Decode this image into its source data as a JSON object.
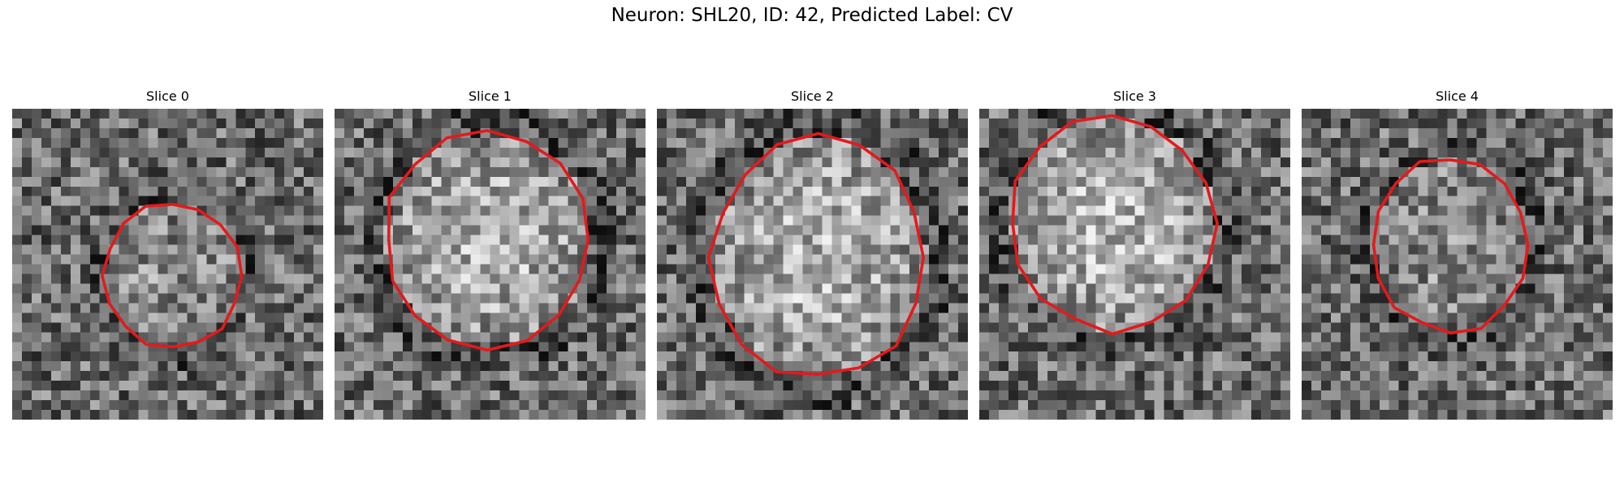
{
  "title": "Neuron: SHL20, ID: 42, Predicted Label: CV",
  "contour_color": "#e31a1c",
  "slices": [
    {
      "label": "Slice 0",
      "seed": 11,
      "center": [
        16.5,
        17.2
      ],
      "radii": [
        7.0,
        7.5
      ],
      "bright": 0.55
    },
    {
      "label": "Slice 1",
      "seed": 23,
      "center": [
        15.7,
        13.5
      ],
      "radii": [
        10.5,
        11.0
      ],
      "bright": 0.7
    },
    {
      "label": "Slice 2",
      "seed": 37,
      "center": [
        16.6,
        15.3
      ],
      "radii": [
        11.0,
        12.5
      ],
      "bright": 0.7
    },
    {
      "label": "Slice 3",
      "seed": 41,
      "center": [
        13.7,
        11.8
      ],
      "radii": [
        10.5,
        11.0
      ],
      "bright": 0.72
    },
    {
      "label": "Slice 4",
      "seed": 53,
      "center": [
        15.3,
        14.0
      ],
      "radii": [
        8.0,
        9.0
      ],
      "bright": 0.55
    }
  ]
}
